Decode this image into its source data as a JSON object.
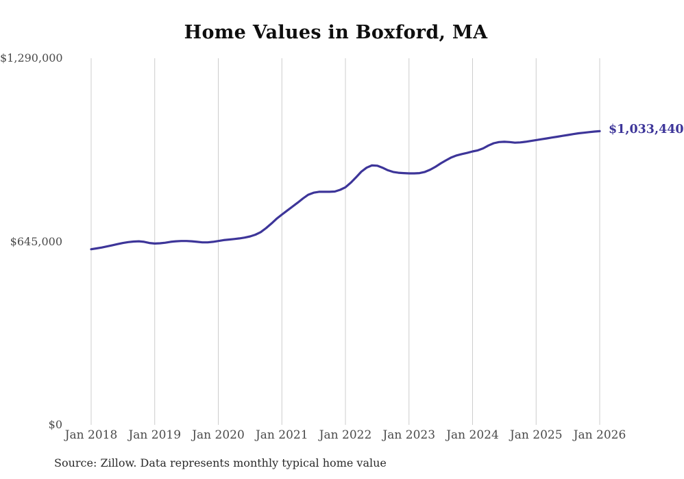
{
  "title": "Home Values in Boxford, MA",
  "source_note": "Source: Zillow. Data represents monthly typical home value",
  "end_label": "$1,033,440",
  "colors": {
    "line": "#3d3599",
    "grid": "#cccccc",
    "tick_text": "#4a4a4a",
    "title_text": "#0e0e0e",
    "end_label_text": "#3d3599",
    "source_text": "#2a2a2a",
    "background": "#ffffff"
  },
  "chart_data": {
    "type": "line",
    "title": "Home Values in Boxford, MA",
    "xlabel": "",
    "ylabel": "",
    "ylim": [
      0,
      1290000
    ],
    "grid": "vertical-only",
    "legend": "none",
    "x_start": "Jan 2018",
    "x_interval": "monthly",
    "x_tick_labels": [
      "Jan 2018",
      "Jan 2019",
      "Jan 2020",
      "Jan 2021",
      "Jan 2022",
      "Jan 2023",
      "Jan 2024",
      "Jan 2025",
      "Jan 2026"
    ],
    "y_ticks": [
      {
        "value": 0,
        "label": "$0"
      },
      {
        "value": 645000,
        "label": "$645,000"
      },
      {
        "value": 1290000,
        "label": "$1,290,000"
      }
    ],
    "final_value": 1033440,
    "series": [
      {
        "name": "Typical home value",
        "values": [
          618000,
          621000,
          624000,
          628000,
          632000,
          636000,
          640000,
          643000,
          645000,
          646000,
          644000,
          640000,
          638000,
          639000,
          641000,
          644000,
          646000,
          647000,
          647000,
          646000,
          644000,
          642000,
          642000,
          644000,
          647000,
          650000,
          652000,
          654000,
          656000,
          659000,
          663000,
          669000,
          678000,
          692000,
          708000,
          725000,
          740000,
          754000,
          768000,
          782000,
          797000,
          810000,
          817000,
          820000,
          820000,
          820000,
          821000,
          827000,
          836000,
          852000,
          871000,
          891000,
          905000,
          913000,
          912000,
          905000,
          896000,
          890000,
          887000,
          886000,
          885000,
          885000,
          886000,
          890000,
          898000,
          908000,
          920000,
          931000,
          941000,
          948000,
          953000,
          957000,
          962000,
          966000,
          973000,
          983000,
          991000,
          995000,
          996000,
          995000,
          993000,
          994000,
          996000,
          999000,
          1002000,
          1005000,
          1008000,
          1011000,
          1014000,
          1017000,
          1020000,
          1023000,
          1026000,
          1028000,
          1030000,
          1032000,
          1033440
        ]
      }
    ]
  }
}
